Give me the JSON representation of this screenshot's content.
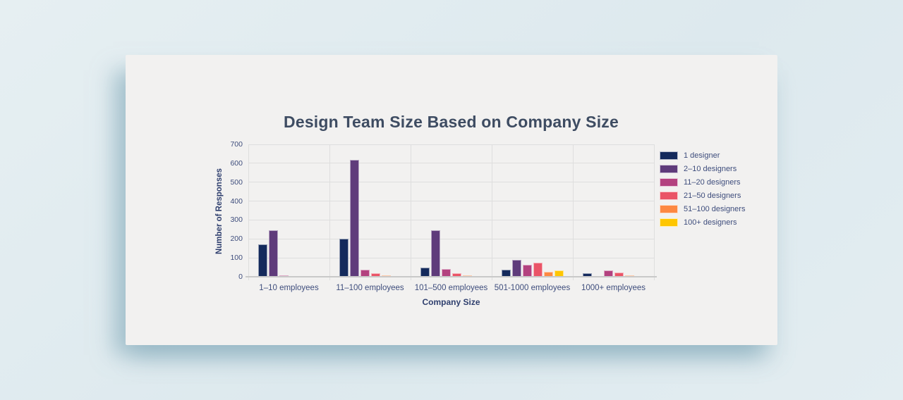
{
  "page": {
    "background_color": "#dfeaee"
  },
  "card": {
    "background_color": "#f2f1f0"
  },
  "chart_data": {
    "type": "bar",
    "title": "Design Team Size Based on Company Size",
    "xlabel": "Company Size",
    "ylabel": "Number of Responses",
    "ylim": [
      0,
      700
    ],
    "yticks": [
      0,
      100,
      200,
      300,
      400,
      500,
      600,
      700
    ],
    "grid": true,
    "legend_position": "right",
    "categories": [
      "1–10 employees",
      "11–100 employees",
      "101–500 employees",
      "501-1000 employees",
      "1000+ employees"
    ],
    "series": [
      {
        "name": "1 designer",
        "color": "#142a5c",
        "values": [
          172,
          200,
          50,
          36,
          18
        ]
      },
      {
        "name": "2–10 designers",
        "color": "#5f3b7b",
        "values": [
          247,
          620,
          245,
          91,
          0
        ]
      },
      {
        "name": "11–20 designers",
        "color": "#b3417f",
        "values": [
          6,
          39,
          42,
          64,
          33
        ]
      },
      {
        "name": "21–50 designers",
        "color": "#ea5467",
        "values": [
          0,
          18,
          19,
          76,
          24
        ]
      },
      {
        "name": "51–100 designers",
        "color": "#fd8842",
        "values": [
          0,
          7,
          6,
          25,
          8
        ]
      },
      {
        "name": "100+ designers",
        "color": "#fec601",
        "values": [
          2,
          0,
          0,
          33,
          0
        ]
      }
    ]
  }
}
